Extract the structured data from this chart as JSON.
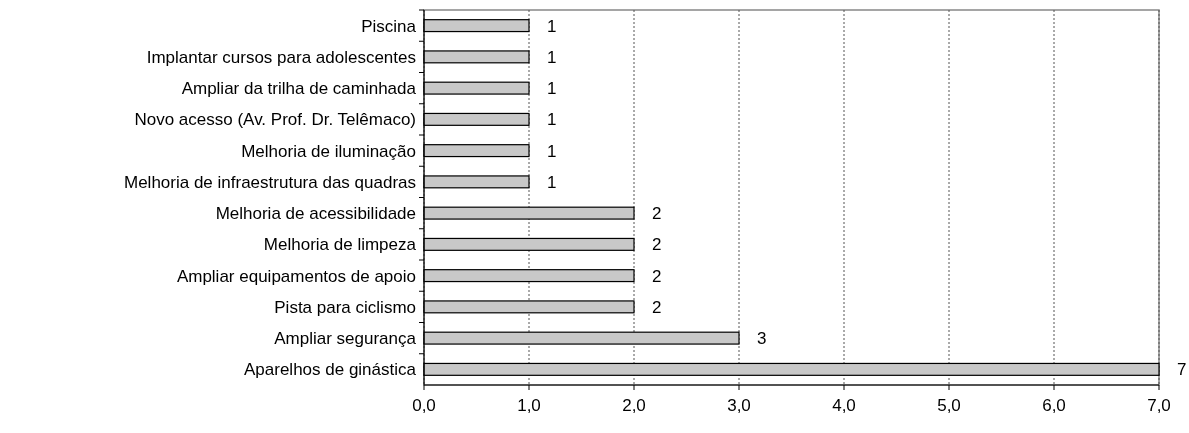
{
  "chart_data": {
    "type": "bar",
    "orientation": "horizontal",
    "categories": [
      "Piscina",
      "Implantar cursos para adolescentes",
      "Ampliar da trilha de caminhada",
      "Novo acesso (Av. Prof. Dr. Telêmaco)",
      "Melhoria de iluminação",
      "Melhoria de infraestrutura das quadras",
      "Melhoria de acessibilidade",
      "Melhoria de limpeza",
      "Ampliar equipamentos de apoio",
      "Pista para ciclismo",
      "Ampliar segurança",
      "Aparelhos de ginástica"
    ],
    "values": [
      1,
      1,
      1,
      1,
      1,
      1,
      2,
      2,
      2,
      2,
      3,
      7
    ],
    "color": "#c8c8c8",
    "xlim": [
      0,
      7
    ],
    "xticks": [
      {
        "value": 0,
        "label": "0,0"
      },
      {
        "value": 1,
        "label": "1,0"
      },
      {
        "value": 2,
        "label": "2,0"
      },
      {
        "value": 3,
        "label": "3,0"
      },
      {
        "value": 4,
        "label": "4,0"
      },
      {
        "value": 5,
        "label": "5,0"
      },
      {
        "value": 6,
        "label": "6,0"
      },
      {
        "value": 7,
        "label": "7,0"
      }
    ],
    "grid": "x",
    "data_labels": true
  }
}
